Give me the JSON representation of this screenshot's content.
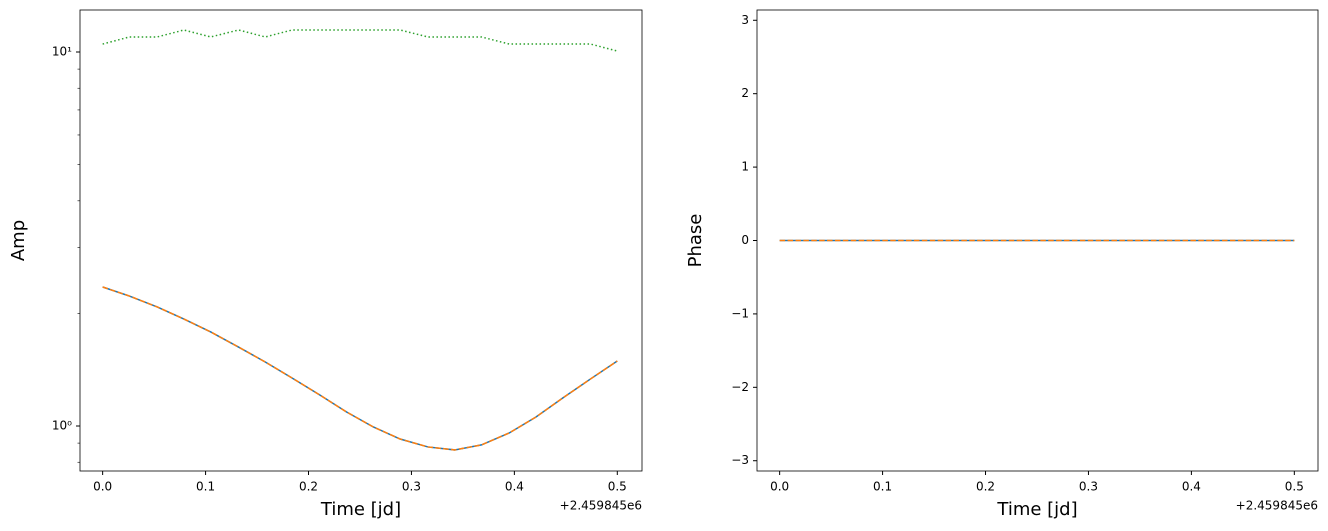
{
  "chart_data": [
    {
      "type": "line",
      "ylabel": "Amp",
      "xlabel": "Time [jd]",
      "offset_label": "+2.459845e6",
      "yscale": "log",
      "x": [
        0.0,
        0.026,
        0.053,
        0.079,
        0.105,
        0.132,
        0.158,
        0.184,
        0.211,
        0.237,
        0.263,
        0.289,
        0.316,
        0.342,
        0.368,
        0.395,
        0.421,
        0.447,
        0.474,
        0.5
      ],
      "series": [
        {
          "color": "#1f77b4",
          "linestyle": "solid",
          "values": [
            2.353,
            2.226,
            2.081,
            1.932,
            1.784,
            1.626,
            1.483,
            1.344,
            1.21,
            1.09,
            0.994,
            0.923,
            0.879,
            0.863,
            0.89,
            0.958,
            1.057,
            1.188,
            1.336,
            1.492
          ]
        },
        {
          "color": "#ff7f0e",
          "linestyle": "dashed",
          "values": [
            2.353,
            2.226,
            2.081,
            1.932,
            1.784,
            1.626,
            1.483,
            1.344,
            1.21,
            1.09,
            0.994,
            0.923,
            0.879,
            0.863,
            0.89,
            0.958,
            1.057,
            1.188,
            1.336,
            1.492
          ]
        },
        {
          "color": "#2ca02c",
          "linestyle": "dotted",
          "values": [
            10.5,
            10.97,
            10.97,
            11.45,
            10.97,
            11.45,
            10.97,
            11.45,
            11.45,
            11.45,
            11.45,
            11.45,
            10.97,
            10.97,
            10.97,
            10.5,
            10.5,
            10.5,
            10.5,
            10.06
          ]
        }
      ],
      "xlim": [
        -0.022,
        0.524
      ],
      "xticks": [
        {
          "value": 0,
          "label": "0.0"
        },
        {
          "value": 0.1,
          "label": "0.1"
        },
        {
          "value": 0.2,
          "label": "0.2"
        },
        {
          "value": 0.3,
          "label": "0.3"
        },
        {
          "value": 0.4,
          "label": "0.4"
        },
        {
          "value": 0.5,
          "label": "0.5"
        }
      ],
      "ylim": [
        0.758,
        12.95
      ],
      "yticks": [
        {
          "value": 1,
          "label": "10⁰"
        },
        {
          "value": 10,
          "label": "10¹"
        }
      ],
      "yminorticks": [
        0.8,
        0.9,
        2,
        3,
        4,
        5,
        6,
        7,
        8,
        9
      ]
    },
    {
      "type": "line",
      "ylabel": "Phase",
      "xlabel": "Time [jd]",
      "offset_label": "+2.459845e6",
      "yscale": "linear",
      "x": [
        0.0,
        0.026,
        0.053,
        0.079,
        0.105,
        0.132,
        0.158,
        0.184,
        0.211,
        0.237,
        0.263,
        0.289,
        0.316,
        0.342,
        0.368,
        0.395,
        0.421,
        0.447,
        0.474,
        0.5
      ],
      "series": [
        {
          "color": "#1f77b4",
          "linestyle": "solid",
          "values": [
            0,
            0,
            0,
            0,
            0,
            0,
            0,
            0,
            0,
            0,
            0,
            0,
            0,
            0,
            0,
            0,
            0,
            0,
            0,
            0
          ]
        },
        {
          "color": "#ff7f0e",
          "linestyle": "dashed",
          "values": [
            0,
            0,
            0,
            0,
            0,
            0,
            0,
            0,
            0,
            0,
            0,
            0,
            0,
            0,
            0,
            0,
            0,
            0,
            0,
            0
          ]
        }
      ],
      "xlim": [
        -0.022,
        0.523
      ],
      "xticks": [
        {
          "value": 0,
          "label": "0.0"
        },
        {
          "value": 0.1,
          "label": "0.1"
        },
        {
          "value": 0.2,
          "label": "0.2"
        },
        {
          "value": 0.3,
          "label": "0.3"
        },
        {
          "value": 0.4,
          "label": "0.4"
        },
        {
          "value": 0.5,
          "label": "0.5"
        }
      ],
      "ylim": [
        -3.14,
        3.14
      ],
      "yticks": [
        {
          "value": -3,
          "label": "−3"
        },
        {
          "value": -2,
          "label": "−2"
        },
        {
          "value": -1,
          "label": "−1"
        },
        0,
        1,
        2,
        3
      ]
    }
  ]
}
